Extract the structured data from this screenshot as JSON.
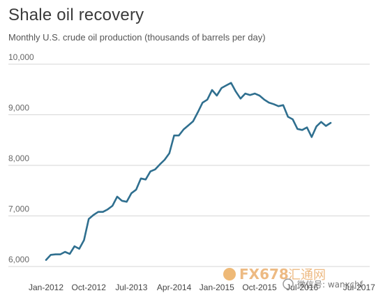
{
  "chart_data": {
    "type": "line",
    "title": "Shale oil recovery",
    "subtitle": "Monthly U.S. crude oil production (thousands of barrels per day)",
    "xlabel": "",
    "ylabel": "",
    "ylim": [
      6000,
      10000
    ],
    "y_ticks": [
      "6,000",
      "7,000",
      "8,000",
      "9,000",
      "10,000"
    ],
    "y_tick_values": [
      6000,
      7000,
      8000,
      9000,
      10000
    ],
    "x_tick_labels": [
      "Jan-2012",
      "Oct-2012",
      "Jul-2013",
      "Apr-2014",
      "Jan-2015",
      "Oct-2015",
      "Jul-2016",
      "Jul-2017"
    ],
    "x_tick_indices": [
      0,
      9,
      18,
      27,
      36,
      45,
      54,
      66
    ],
    "grid": "horizontal",
    "color": "#2f6f8f",
    "series": [
      {
        "values": [
          6130,
          6230,
          6240,
          6240,
          6290,
          6250,
          6400,
          6350,
          6520,
          6940,
          7020,
          7080,
          7080,
          7130,
          7200,
          7380,
          7300,
          7280,
          7450,
          7520,
          7740,
          7720,
          7880,
          7920,
          8020,
          8110,
          8240,
          8590,
          8590,
          8710,
          8790,
          8870,
          9050,
          9240,
          9300,
          9490,
          9380,
          9530,
          9580,
          9630,
          9460,
          9320,
          9420,
          9390,
          9420,
          9380,
          9300,
          9240,
          9210,
          9170,
          9190,
          8960,
          8910,
          8720,
          8700,
          8750,
          8560,
          8770,
          8860,
          8780,
          8840
        ]
      }
    ]
  },
  "watermark": {
    "left_text": "FX678",
    "left_text2": "汇通网",
    "right_text": "微信号: wanxchf"
  }
}
